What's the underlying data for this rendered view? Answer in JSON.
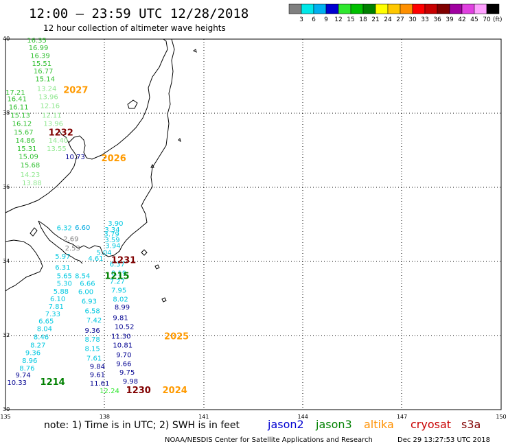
{
  "header": {
    "title": "12:00 – 23:59 UTC 12/28/2018",
    "subtitle": "12 hour collection of altimeter wave heights"
  },
  "legend": {
    "unit": "(ft)",
    "bins": [
      {
        "label": "3",
        "color": "#808080"
      },
      {
        "label": "6",
        "color": "#00e8e8"
      },
      {
        "label": "9",
        "color": "#00b0f0"
      },
      {
        "label": "12",
        "color": "#0000d0"
      },
      {
        "label": "15",
        "color": "#30e830"
      },
      {
        "label": "18",
        "color": "#00c000"
      },
      {
        "label": "21",
        "color": "#008000"
      },
      {
        "label": "24",
        "color": "#ffff00"
      },
      {
        "label": "27",
        "color": "#ffc800"
      },
      {
        "label": "30",
        "color": "#ff9000"
      },
      {
        "label": "33",
        "color": "#ff0000"
      },
      {
        "label": "36",
        "color": "#c80000"
      },
      {
        "label": "39",
        "color": "#800000"
      },
      {
        "label": "42",
        "color": "#a000a0"
      },
      {
        "label": "45",
        "color": "#e040e0"
      },
      {
        "label": "70",
        "color": "#ffa0ff"
      },
      {
        "label": "",
        "color": "#000000"
      }
    ]
  },
  "axes": {
    "lat_labels": [
      "40",
      "38",
      "36",
      "34",
      "32",
      "30"
    ],
    "lon_labels": [
      "135",
      "138",
      "141",
      "144",
      "147",
      "150"
    ]
  },
  "tracks": [
    {
      "color": "#30c030",
      "points": [
        {
          "lat": 39.91,
          "lon": 135.65,
          "v": "16.35"
        },
        {
          "lat": 39.7,
          "lon": 135.7,
          "v": "16.99"
        },
        {
          "lat": 39.49,
          "lon": 135.75,
          "v": "16.39"
        },
        {
          "lat": 39.28,
          "lon": 135.8,
          "v": "15.51"
        },
        {
          "lat": 39.07,
          "lon": 135.85,
          "v": "16.77"
        },
        {
          "lat": 38.86,
          "lon": 135.9,
          "v": "15.14"
        },
        {
          "lat": 38.5,
          "lon": 135.0,
          "v": "17.21"
        },
        {
          "lat": 38.32,
          "lon": 135.05,
          "v": "16.41"
        },
        {
          "lat": 38.1,
          "lon": 135.1,
          "v": "16.11"
        },
        {
          "lat": 37.88,
          "lon": 135.15,
          "v": "15.13"
        },
        {
          "lat": 37.66,
          "lon": 135.2,
          "v": "16.12"
        },
        {
          "lat": 37.43,
          "lon": 135.25,
          "v": "15.67"
        },
        {
          "lat": 37.2,
          "lon": 135.3,
          "v": "14.86"
        },
        {
          "lat": 36.98,
          "lon": 135.35,
          "v": "15.31"
        },
        {
          "lat": 36.77,
          "lon": 135.4,
          "v": "15.09"
        },
        {
          "lat": 36.54,
          "lon": 135.45,
          "v": "15.68"
        }
      ]
    },
    {
      "color": "#90e890",
      "points": [
        {
          "lat": 38.6,
          "lon": 135.95,
          "v": "13.24"
        },
        {
          "lat": 38.38,
          "lon": 136.0,
          "v": "13.96"
        },
        {
          "lat": 38.14,
          "lon": 136.05,
          "v": "12.16"
        },
        {
          "lat": 37.88,
          "lon": 136.1,
          "v": "12.11"
        },
        {
          "lat": 37.66,
          "lon": 136.15,
          "v": "13.96"
        },
        {
          "lat": 37.2,
          "lon": 136.3,
          "v": "14.40"
        },
        {
          "lat": 36.98,
          "lon": 136.25,
          "v": "13.55"
        },
        {
          "lat": 36.28,
          "lon": 135.45,
          "v": "14.23"
        },
        {
          "lat": 36.06,
          "lon": 135.5,
          "v": "13.88"
        }
      ]
    },
    {
      "color": "#000090",
      "points": [
        {
          "lat": 36.76,
          "lon": 136.81,
          "v": "10.73"
        }
      ]
    },
    {
      "color": "#00c8e0",
      "points": [
        {
          "lat": 34.96,
          "lon": 138.1,
          "v": "3.90"
        },
        {
          "lat": 34.8,
          "lon": 138.0,
          "v": "3.34"
        },
        {
          "lat": 34.68,
          "lon": 137.98,
          "v": "3.79"
        },
        {
          "lat": 34.52,
          "lon": 138.0,
          "v": "3.59"
        },
        {
          "lat": 34.36,
          "lon": 138.02,
          "v": "3.94"
        },
        {
          "lat": 34.18,
          "lon": 137.75,
          "v": "5.04"
        },
        {
          "lat": 34.02,
          "lon": 137.5,
          "v": "4.61"
        },
        {
          "lat": 33.86,
          "lon": 138.15,
          "v": "6.37"
        },
        {
          "lat": 33.62,
          "lon": 138.2,
          "v": "8.19"
        },
        {
          "lat": 33.4,
          "lon": 138.15,
          "v": "7.27"
        },
        {
          "lat": 33.16,
          "lon": 138.2,
          "v": "7.95"
        },
        {
          "lat": 32.92,
          "lon": 138.25,
          "v": "8.02"
        },
        {
          "lat": 34.84,
          "lon": 136.55,
          "v": "6.32"
        },
        {
          "lat": 34.07,
          "lon": 136.5,
          "v": "5.97"
        },
        {
          "lat": 33.78,
          "lon": 136.5,
          "v": "6.31"
        },
        {
          "lat": 33.55,
          "lon": 136.55,
          "v": "5.65"
        },
        {
          "lat": 33.34,
          "lon": 136.55,
          "v": "5.30"
        },
        {
          "lat": 33.13,
          "lon": 136.45,
          "v": "5.88"
        },
        {
          "lat": 32.93,
          "lon": 136.35,
          "v": "6.10"
        },
        {
          "lat": 32.72,
          "lon": 136.3,
          "v": "7.81"
        },
        {
          "lat": 32.52,
          "lon": 136.2,
          "v": "7.33"
        },
        {
          "lat": 32.32,
          "lon": 136.0,
          "v": "6.65"
        },
        {
          "lat": 32.12,
          "lon": 135.95,
          "v": "8.04"
        },
        {
          "lat": 31.9,
          "lon": 135.85,
          "v": "8.46"
        },
        {
          "lat": 31.68,
          "lon": 135.75,
          "v": "8.27"
        },
        {
          "lat": 31.47,
          "lon": 135.6,
          "v": "9.36"
        },
        {
          "lat": 31.26,
          "lon": 135.5,
          "v": "8.96"
        },
        {
          "lat": 31.06,
          "lon": 135.42,
          "v": "8.76"
        },
        {
          "lat": 33.55,
          "lon": 137.1,
          "v": "8.54"
        },
        {
          "lat": 33.34,
          "lon": 137.25,
          "v": "6.66"
        },
        {
          "lat": 33.12,
          "lon": 137.2,
          "v": "6.00"
        },
        {
          "lat": 32.86,
          "lon": 137.3,
          "v": "6.93"
        },
        {
          "lat": 32.6,
          "lon": 137.4,
          "v": "6.58"
        },
        {
          "lat": 32.35,
          "lon": 137.45,
          "v": "7.42"
        },
        {
          "lat": 31.83,
          "lon": 137.4,
          "v": "8.78"
        },
        {
          "lat": 31.58,
          "lon": 137.4,
          "v": "8.15"
        },
        {
          "lat": 31.32,
          "lon": 137.45,
          "v": "7.61"
        }
      ]
    },
    {
      "color": "#00a8e0",
      "points": [
        {
          "lat": 34.85,
          "lon": 137.1,
          "v": "6.60"
        }
      ]
    },
    {
      "color": "#000090",
      "points": [
        {
          "lat": 32.7,
          "lon": 138.3,
          "v": "8.99"
        },
        {
          "lat": 32.42,
          "lon": 138.25,
          "v": "9.81"
        },
        {
          "lat": 32.18,
          "lon": 138.3,
          "v": "10.52"
        },
        {
          "lat": 31.92,
          "lon": 138.2,
          "v": "11.30"
        },
        {
          "lat": 31.68,
          "lon": 138.25,
          "v": "10.81"
        },
        {
          "lat": 31.42,
          "lon": 138.35,
          "v": "9.70"
        },
        {
          "lat": 31.18,
          "lon": 138.35,
          "v": "9.66"
        },
        {
          "lat": 30.94,
          "lon": 138.45,
          "v": "9.75"
        },
        {
          "lat": 30.7,
          "lon": 138.55,
          "v": "9.98"
        },
        {
          "lat": 32.07,
          "lon": 137.4,
          "v": "9.36"
        },
        {
          "lat": 31.1,
          "lon": 137.55,
          "v": "9.84"
        },
        {
          "lat": 30.88,
          "lon": 137.55,
          "v": "9.61"
        },
        {
          "lat": 30.65,
          "lon": 137.55,
          "v": "11.61"
        },
        {
          "lat": 30.87,
          "lon": 135.3,
          "v": "9.74"
        },
        {
          "lat": 30.67,
          "lon": 135.05,
          "v": "10.33"
        }
      ]
    },
    {
      "color": "#30e830",
      "points": [
        {
          "lat": 30.44,
          "lon": 137.85,
          "v": "12.24"
        }
      ]
    },
    {
      "color": "#808080",
      "points": [
        {
          "lat": 34.55,
          "lon": 136.75,
          "v": "2.69"
        },
        {
          "lat": 34.3,
          "lon": 136.8,
          "v": "2.53"
        }
      ]
    }
  ],
  "track_ids": [
    {
      "lat": 38.55,
      "lon": 136.75,
      "text": "2027",
      "color": "#ff9a00"
    },
    {
      "lat": 37.4,
      "lon": 136.3,
      "text": "1232",
      "color": "#800000"
    },
    {
      "lat": 36.7,
      "lon": 137.9,
      "text": "2026",
      "color": "#ff9a00"
    },
    {
      "lat": 33.95,
      "lon": 138.2,
      "text": "1231",
      "color": "#800000"
    },
    {
      "lat": 33.53,
      "lon": 138.0,
      "text": "1215",
      "color": "#008000"
    },
    {
      "lat": 31.9,
      "lon": 139.8,
      "text": "2025",
      "color": "#ff9a00"
    },
    {
      "lat": 30.67,
      "lon": 136.05,
      "text": "1214",
      "color": "#008000"
    },
    {
      "lat": 30.44,
      "lon": 138.65,
      "text": "1230",
      "color": "#800000"
    },
    {
      "lat": 30.44,
      "lon": 139.75,
      "text": "2024",
      "color": "#ff9a00"
    }
  ],
  "footer": {
    "note": "note: 1) Time is in UTC; 2) SWH is in feet",
    "satellites": [
      {
        "text": "jason2",
        "color": "#0000d0"
      },
      {
        "text": "jason3",
        "color": "#008000"
      },
      {
        "text": "altika",
        "color": "#ff9000"
      },
      {
        "text": "cryosat",
        "color": "#c80000"
      },
      {
        "text": "s3a",
        "color": "#800000"
      }
    ],
    "credit": "NOAA/NESDIS Center for Satellite Applications and Research",
    "timestamp": "Dec 29 13:27:53 UTC 2018"
  }
}
